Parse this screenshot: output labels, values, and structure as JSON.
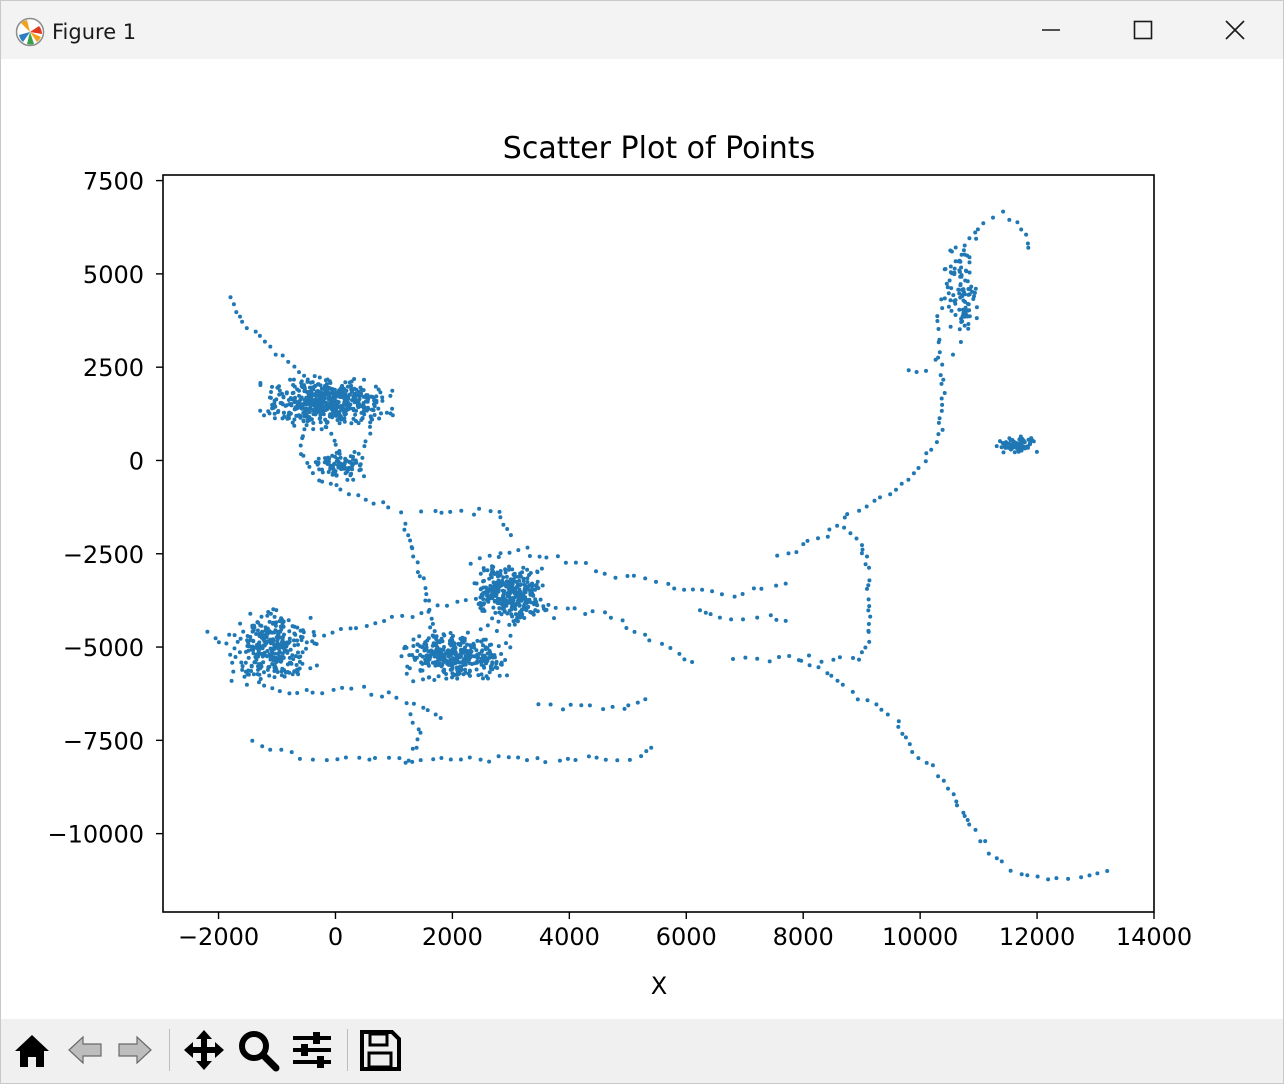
{
  "window": {
    "title": "Figure 1",
    "controls": [
      "minimize-icon",
      "maximize-icon",
      "close-icon"
    ]
  },
  "toolbar": {
    "buttons": [
      {
        "name": "home-button",
        "icon": "home-icon",
        "enabled": true
      },
      {
        "name": "back-button",
        "icon": "arrow-left-icon",
        "enabled": false
      },
      {
        "name": "forward-button",
        "icon": "arrow-right-icon",
        "enabled": false
      },
      {
        "name": "pan-button",
        "icon": "move-icon",
        "enabled": true
      },
      {
        "name": "zoom-button",
        "icon": "magnifier-icon",
        "enabled": true
      },
      {
        "name": "configure-subplots-button",
        "icon": "sliders-icon",
        "enabled": true
      },
      {
        "name": "save-button",
        "icon": "floppy-disk-icon",
        "enabled": true
      }
    ]
  },
  "colors": {
    "series": "#1f77b4",
    "titlebar": "#f3f3f3",
    "toolbar": "#f0f0f0"
  },
  "chart_data": {
    "type": "scatter",
    "title": "Scatter Plot of Points",
    "xlabel": "X",
    "ylabel": "",
    "xlim": [
      -2950,
      14000
    ],
    "ylim": [
      -12100,
      7650
    ],
    "xticks": [
      -2000,
      0,
      2000,
      4000,
      6000,
      8000,
      10000,
      12000,
      14000
    ],
    "xtick_labels": [
      "−2000",
      "0",
      "2000",
      "4000",
      "6000",
      "8000",
      "10000",
      "12000",
      "14000"
    ],
    "yticks": [
      7500,
      5000,
      2500,
      0,
      -2500,
      -5000,
      -7500,
      -10000
    ],
    "ytick_labels": [
      "7500",
      "5000",
      "2500",
      "0",
      "−2500",
      "−5000",
      "−7500",
      "−10000"
    ],
    "grid": false,
    "legend": "none",
    "series": [
      {
        "color": "#1f77b4",
        "paths": [
          [
            [
              -1800,
              4300
            ],
            [
              -1600,
              3700
            ],
            [
              -1200,
              3200
            ],
            [
              -700,
              2500
            ],
            [
              -400,
              1900
            ]
          ],
          [
            [
              -300,
              1600
            ],
            [
              -500,
              1000
            ],
            [
              -600,
              400
            ],
            [
              -450,
              -200
            ],
            [
              -300,
              -500
            ],
            [
              -100,
              -600
            ],
            [
              100,
              -800
            ],
            [
              500,
              -1100
            ],
            [
              800,
              -1200
            ],
            [
              1100,
              -1400
            ],
            [
              1200,
              -1800
            ],
            [
              1300,
              -2300
            ],
            [
              1400,
              -2900
            ],
            [
              1500,
              -3400
            ],
            [
              1600,
              -4000
            ],
            [
              1700,
              -4600
            ],
            [
              1800,
              -5200
            ]
          ],
          [
            [
              -200,
              1200
            ],
            [
              0,
              400
            ],
            [
              200,
              -300
            ]
          ],
          [
            [
              400,
              1500
            ],
            [
              600,
              900
            ],
            [
              500,
              400
            ],
            [
              300,
              100
            ]
          ],
          [
            [
              -1000,
              -5100
            ],
            [
              -500,
              -4800
            ],
            [
              100,
              -4600
            ],
            [
              700,
              -4400
            ],
            [
              1300,
              -4200
            ],
            [
              1900,
              -3900
            ],
            [
              2600,
              -3600
            ]
          ],
          [
            [
              -2200,
              -4600
            ],
            [
              -1800,
              -5100
            ],
            [
              -1500,
              -5700
            ],
            [
              -1200,
              -6000
            ],
            [
              -800,
              -6200
            ],
            [
              -200,
              -6200
            ],
            [
              300,
              -6100
            ],
            [
              800,
              -6200
            ],
            [
              1200,
              -6400
            ],
            [
              1600,
              -6700
            ],
            [
              1800,
              -6900
            ]
          ],
          [
            [
              1300,
              -6800
            ],
            [
              1400,
              -7300
            ],
            [
              1350,
              -7800
            ],
            [
              1200,
              -8100
            ]
          ],
          [
            [
              -1400,
              -7500
            ],
            [
              -1100,
              -7700
            ],
            [
              -800,
              -7900
            ],
            [
              -400,
              -8000
            ],
            [
              0,
              -8000
            ],
            [
              400,
              -8000
            ],
            [
              900,
              -8000
            ],
            [
              1300,
              -8000
            ],
            [
              1800,
              -8000
            ],
            [
              2300,
              -8000
            ],
            [
              2800,
              -8000
            ],
            [
              3300,
              -8000
            ],
            [
              3800,
              -8000
            ],
            [
              4300,
              -8000
            ],
            [
              4800,
              -8000
            ],
            [
              5200,
              -7900
            ],
            [
              5400,
              -7700
            ]
          ],
          [
            [
              1500,
              -1400
            ],
            [
              2000,
              -1400
            ],
            [
              2500,
              -1300
            ],
            [
              2800,
              -1400
            ],
            [
              3000,
              -2000
            ]
          ],
          [
            [
              2300,
              -2700
            ],
            [
              2800,
              -2500
            ],
            [
              3300,
              -2400
            ],
            [
              3800,
              -2600
            ],
            [
              4300,
              -2800
            ],
            [
              4800,
              -3100
            ],
            [
              5300,
              -3200
            ],
            [
              5800,
              -3400
            ],
            [
              6300,
              -3500
            ],
            [
              6800,
              -3600
            ],
            [
              7300,
              -3400
            ],
            [
              7700,
              -3300
            ]
          ],
          [
            [
              3100,
              -3900
            ],
            [
              3600,
              -3900
            ],
            [
              4100,
              -4000
            ],
            [
              4600,
              -4100
            ],
            [
              5100,
              -4600
            ],
            [
              5600,
              -4900
            ],
            [
              6100,
              -5400
            ]
          ],
          [
            [
              2000,
              -4800
            ],
            [
              2400,
              -4900
            ],
            [
              2800,
              -5400
            ],
            [
              2600,
              -5800
            ],
            [
              2000,
              -5700
            ]
          ],
          [
            [
              3500,
              -6600
            ],
            [
              4200,
              -6600
            ],
            [
              4900,
              -6600
            ],
            [
              5300,
              -6400
            ]
          ],
          [
            [
              6200,
              -4000
            ],
            [
              6600,
              -4200
            ],
            [
              7000,
              -4300
            ],
            [
              7400,
              -4200
            ],
            [
              7700,
              -4300
            ]
          ],
          [
            [
              6800,
              -5300
            ],
            [
              7200,
              -5300
            ],
            [
              7600,
              -5300
            ],
            [
              8100,
              -5300
            ],
            [
              8500,
              -5300
            ],
            [
              9000,
              -5300
            ],
            [
              9100,
              -5000
            ],
            [
              9100,
              -4200
            ],
            [
              9100,
              -3500
            ],
            [
              9100,
              -2800
            ],
            [
              9000,
              -2200
            ],
            [
              8700,
              -1800
            ]
          ],
          [
            [
              7600,
              -2600
            ],
            [
              8000,
              -2300
            ],
            [
              8400,
              -2000
            ],
            [
              8800,
              -1500
            ],
            [
              9200,
              -1100
            ],
            [
              9600,
              -700
            ],
            [
              10000,
              -200
            ],
            [
              10200,
              300
            ],
            [
              10350,
              800
            ],
            [
              10400,
              1500
            ],
            [
              10350,
              2300
            ],
            [
              10300,
              3000
            ],
            [
              10300,
              3700
            ],
            [
              10400,
              4200
            ],
            [
              10500,
              4800
            ],
            [
              10700,
              5500
            ],
            [
              10900,
              6100
            ],
            [
              11100,
              6400
            ],
            [
              11400,
              6600
            ],
            [
              11700,
              6300
            ],
            [
              11850,
              5700
            ]
          ],
          [
            [
              9800,
              2400
            ],
            [
              10100,
              2400
            ]
          ],
          [
            [
              10400,
              5100
            ],
            [
              10700,
              5000
            ],
            [
              10900,
              4500
            ],
            [
              10800,
              4000
            ],
            [
              10700,
              3800
            ]
          ],
          [
            [
              8000,
              -5400
            ],
            [
              8400,
              -5700
            ],
            [
              8800,
              -6200
            ],
            [
              9200,
              -6600
            ],
            [
              9600,
              -7000
            ],
            [
              9800,
              -7600
            ],
            [
              10100,
              -8100
            ],
            [
              10400,
              -8600
            ],
            [
              10600,
              -9100
            ],
            [
              10800,
              -9700
            ],
            [
              11100,
              -10300
            ],
            [
              11400,
              -10800
            ],
            [
              11700,
              -11100
            ],
            [
              12000,
              -11200
            ],
            [
              12500,
              -11200
            ],
            [
              12900,
              -11100
            ],
            [
              13200,
              -11000
            ]
          ],
          [
            [
              11500,
              450
            ],
            [
              11700,
              350
            ],
            [
              11900,
              600
            ]
          ]
        ],
        "clusters": [
          {
            "center": [
              -150,
              1550
            ],
            "spread": [
              450,
              280
            ],
            "count": 520
          },
          {
            "center": [
              -1080,
              -5000
            ],
            "spread": [
              300,
              420
            ],
            "count": 300
          },
          {
            "center": [
              2050,
              -5250
            ],
            "spread": [
              380,
              280
            ],
            "count": 330
          },
          {
            "center": [
              3000,
              -3550
            ],
            "spread": [
              280,
              380
            ],
            "count": 340
          },
          {
            "center": [
              50,
              -100
            ],
            "spread": [
              200,
              180
            ],
            "count": 90
          },
          {
            "center": [
              11650,
              400
            ],
            "spread": [
              130,
              90
            ],
            "count": 70
          },
          {
            "center": [
              10700,
              4500
            ],
            "spread": [
              120,
              600
            ],
            "count": 80
          }
        ]
      }
    ]
  }
}
